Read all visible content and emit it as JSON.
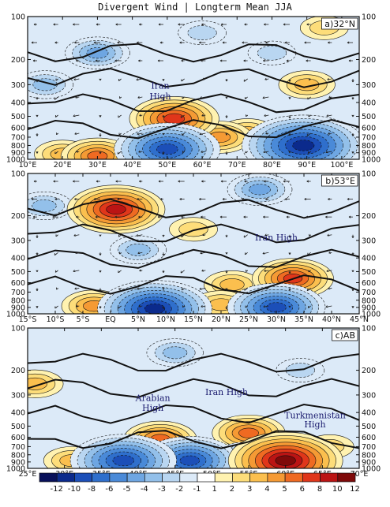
{
  "title": "Divergent Wind | Longterm Mean JJA",
  "pressure_levels": [
    100,
    200,
    300,
    400,
    500,
    600,
    700,
    800,
    900,
    1000
  ],
  "pressure_tick_labels": [
    "100",
    "200",
    "300",
    "400",
    "500",
    "600",
    "700",
    "800",
    "900",
    "1000"
  ],
  "colorbar": {
    "labels": [
      "-12",
      "-10",
      "-8",
      "-6",
      "-5",
      "-4",
      "-3",
      "-2",
      "-1",
      "1",
      "2",
      "3",
      "4",
      "5",
      "6",
      "8",
      "10",
      "12"
    ],
    "colors": [
      "#08105a",
      "#0b2a8c",
      "#1c4fb8",
      "#2f6fcc",
      "#4a8ad8",
      "#6ea6e2",
      "#93c0ea",
      "#b9d6f1",
      "#dceaf8",
      "#ffffff",
      "#fff2b0",
      "#fddd7a",
      "#fbbf4e",
      "#f59a34",
      "#ef6a22",
      "#e0361a",
      "#bb1414",
      "#7f0a0a"
    ]
  },
  "chart_data": [
    {
      "type": "heatmap",
      "panel": "a)32°N",
      "x_tick_labels": [
        "10°E",
        "20°E",
        "30°E",
        "40°E",
        "50°E",
        "60°E",
        "70°E",
        "80°E",
        "90°E",
        "100°E"
      ],
      "xlim": [
        10,
        105
      ],
      "ylim": [
        1000,
        100
      ],
      "annotations": [
        {
          "text": "Iran",
          "x": 48,
          "p": 320
        },
        {
          "text": "High",
          "x": 48,
          "p": 380
        }
      ],
      "blobs": [
        {
          "x": 52,
          "p": 520,
          "v": 7
        },
        {
          "x": 50,
          "p": 850,
          "v": -9
        },
        {
          "x": 65,
          "p": 700,
          "v": 4
        },
        {
          "x": 73,
          "p": 650,
          "v": 3
        },
        {
          "x": 89,
          "p": 800,
          "v": -11
        },
        {
          "x": 30,
          "p": 950,
          "v": 5
        },
        {
          "x": 20,
          "p": 920,
          "v": 3
        },
        {
          "x": 42,
          "p": 800,
          "v": 2
        },
        {
          "x": 90,
          "p": 300,
          "v": 3
        },
        {
          "x": 30,
          "p": 180,
          "v": -4
        },
        {
          "x": 60,
          "p": 130,
          "v": -2
        },
        {
          "x": 95,
          "p": 120,
          "v": 2
        },
        {
          "x": 15,
          "p": 300,
          "v": -3
        },
        {
          "x": 80,
          "p": 180,
          "v": -2
        }
      ]
    },
    {
      "type": "heatmap",
      "panel": "b)53°E",
      "x_tick_labels": [
        "15°S",
        "10°S",
        "5°S",
        "EQ",
        "5°N",
        "10°N",
        "15°N",
        "20°N",
        "25°N",
        "30°N",
        "35°N",
        "40°N",
        "45°N"
      ],
      "xlim": [
        -15,
        45
      ],
      "ylim": [
        1000,
        100
      ],
      "annotations": [
        {
          "text": "Iran High",
          "x": 30,
          "p": 300
        }
      ],
      "blobs": [
        {
          "x": 1,
          "p": 180,
          "v": 8
        },
        {
          "x": 33,
          "p": 560,
          "v": 6
        },
        {
          "x": 22,
          "p": 620,
          "v": 3
        },
        {
          "x": 8,
          "p": 920,
          "v": -10
        },
        {
          "x": 30,
          "p": 900,
          "v": -8
        },
        {
          "x": -3,
          "p": 880,
          "v": 4
        },
        {
          "x": 20,
          "p": 860,
          "v": 3
        },
        {
          "x": 5,
          "p": 350,
          "v": -3
        },
        {
          "x": 27,
          "p": 130,
          "v": -4
        },
        {
          "x": -12,
          "p": 170,
          "v": -3
        },
        {
          "x": 15,
          "p": 250,
          "v": 2
        }
      ]
    },
    {
      "type": "heatmap",
      "panel": "c)AB",
      "x_tick_labels": [
        "25°E",
        "30°E",
        "35°E",
        "40°E",
        "45°E",
        "50°E",
        "55°E",
        "60°E",
        "65°E",
        "70°E"
      ],
      "xlim": [
        25,
        70
      ],
      "ylim": [
        1000,
        100
      ],
      "annotations": [
        {
          "text": "Arabian",
          "x": 42,
          "p": 330
        },
        {
          "text": "High",
          "x": 42,
          "p": 390
        },
        {
          "text": "Iran High",
          "x": 52,
          "p": 300
        },
        {
          "text": "Turkmenistan",
          "x": 64,
          "p": 440
        },
        {
          "text": "High",
          "x": 64,
          "p": 510
        }
      ],
      "blobs": [
        {
          "x": 43,
          "p": 620,
          "v": 5
        },
        {
          "x": 55,
          "p": 560,
          "v": 5
        },
        {
          "x": 60,
          "p": 880,
          "v": 10
        },
        {
          "x": 38,
          "p": 880,
          "v": -9
        },
        {
          "x": 47,
          "p": 880,
          "v": -8
        },
        {
          "x": 55,
          "p": 900,
          "v": -6
        },
        {
          "x": 31,
          "p": 880,
          "v": 3
        },
        {
          "x": 26,
          "p": 250,
          "v": 3
        },
        {
          "x": 45,
          "p": 150,
          "v": -3
        },
        {
          "x": 62,
          "p": 200,
          "v": -2
        },
        {
          "x": 66,
          "p": 700,
          "v": 2
        }
      ]
    }
  ]
}
